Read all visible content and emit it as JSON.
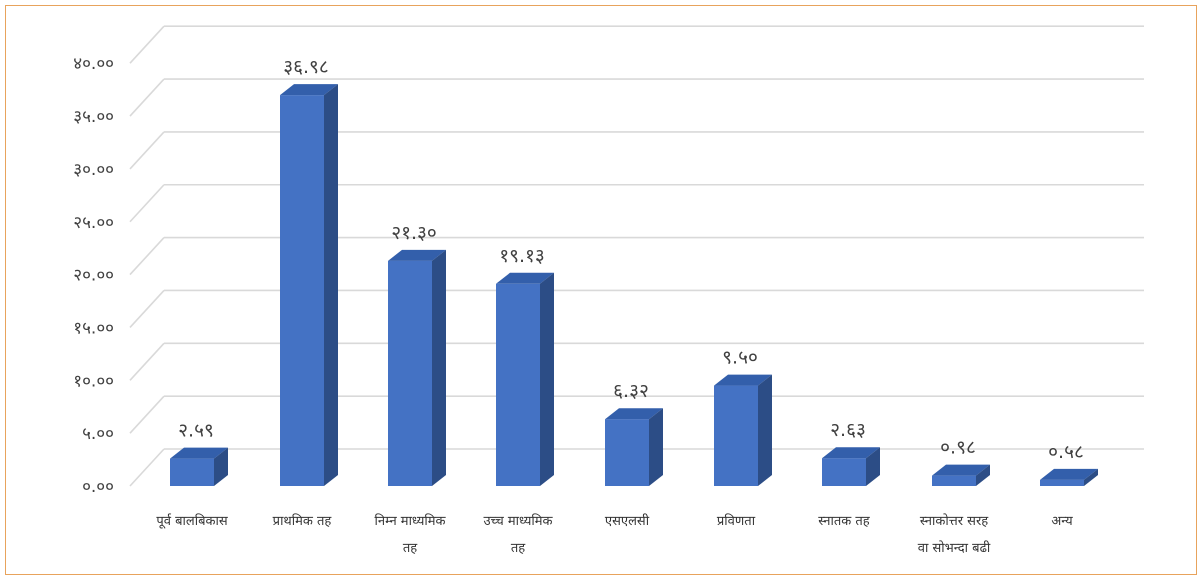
{
  "chart_data": {
    "type": "bar",
    "title": "",
    "xlabel": "",
    "ylabel": "",
    "categories": [
      [
        "पूर्व बालबिकास"
      ],
      [
        "प्राथमिक तह"
      ],
      [
        "निम्न माध्यमिक",
        "तह"
      ],
      [
        "उच्च माध्यमिक",
        "तह"
      ],
      [
        "एसएलसी"
      ],
      [
        "प्रविणता"
      ],
      [
        "स्नातक तह"
      ],
      [
        "स्नाकोत्तर सरह",
        "वा सोभन्दा बढी"
      ],
      [
        "अन्य"
      ]
    ],
    "values": [
      2.59,
      36.98,
      21.3,
      19.13,
      6.32,
      9.5,
      2.63,
      0.98,
      0.58
    ],
    "data_labels": [
      "२.५९",
      "३६.९८",
      "२१.३०",
      "१९.१३",
      "६.३२",
      "९.५०",
      "२.६३",
      "०.९८",
      "०.५८"
    ],
    "y_ticks": [
      0,
      5,
      10,
      15,
      20,
      25,
      30,
      35,
      40
    ],
    "y_tick_labels": [
      "०.००",
      "५.००",
      "१०.००",
      "१५.००",
      "२०.००",
      "२५.००",
      "३०.००",
      "३५.००",
      "४०.००"
    ],
    "ylim": [
      0,
      40
    ],
    "grid": true,
    "legend": "none",
    "bar_color_front": "#4472c4",
    "bar_color_top": "#335fab",
    "bar_color_side": "#2c4d86",
    "grid_color": "#d9d9d9",
    "border_color": "#e8a35c"
  }
}
